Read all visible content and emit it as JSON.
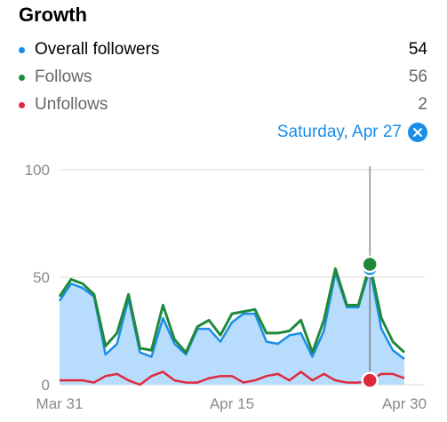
{
  "header": {
    "title": "Growth"
  },
  "legend": [
    {
      "label": "Overall followers",
      "value": "54",
      "color": "#1a8ee8"
    },
    {
      "label": "Follows",
      "value": "56",
      "color": "#1f8a3b"
    },
    {
      "label": "Unfollows",
      "value": "2",
      "color": "#e0283c"
    }
  ],
  "selection": {
    "label": "Saturday, Apr 27"
  },
  "colors": {
    "overall_line": "#1a8ee8",
    "overall_fill": "#b8dcfb",
    "follows_line": "#1f8a3b",
    "unfollows_line": "#e0283c",
    "grid": "#d8d8d8",
    "axis_text": "#8a8a8a",
    "cursor": "#555555"
  },
  "chart_data": {
    "type": "area",
    "x": [
      "Mar 31",
      "Apr 1",
      "Apr 2",
      "Apr 3",
      "Apr 4",
      "Apr 5",
      "Apr 6",
      "Apr 7",
      "Apr 8",
      "Apr 9",
      "Apr 10",
      "Apr 11",
      "Apr 12",
      "Apr 13",
      "Apr 14",
      "Apr 15",
      "Apr 16",
      "Apr 17",
      "Apr 18",
      "Apr 19",
      "Apr 20",
      "Apr 21",
      "Apr 22",
      "Apr 23",
      "Apr 24",
      "Apr 25",
      "Apr 26",
      "Apr 27",
      "Apr 28",
      "Apr 29",
      "Apr 30"
    ],
    "series": [
      {
        "name": "Overall followers",
        "values": [
          39,
          47,
          45,
          41,
          14,
          19,
          40,
          15,
          13,
          31,
          19,
          14,
          26,
          26,
          20,
          29,
          33,
          33,
          20,
          19,
          23,
          24,
          13,
          25,
          52,
          36,
          36,
          54,
          26,
          16,
          12
        ]
      },
      {
        "name": "Follows",
        "values": [
          41,
          49,
          47,
          42,
          18,
          24,
          42,
          17,
          16,
          37,
          21,
          15,
          27,
          30,
          23,
          33,
          34,
          35,
          24,
          24,
          25,
          30,
          15,
          30,
          54,
          37,
          37,
          56,
          31,
          20,
          15
        ]
      },
      {
        "name": "Unfollows",
        "values": [
          2,
          2,
          2,
          1,
          4,
          5,
          2,
          0,
          4,
          6,
          2,
          1,
          1,
          3,
          4,
          4,
          1,
          2,
          4,
          5,
          2,
          6,
          2,
          5,
          2,
          1,
          1,
          2,
          5,
          5,
          3
        ]
      }
    ],
    "x_tick_labels": [
      "Mar 31",
      "Apr 15",
      "Apr 30"
    ],
    "y_tick_labels": [
      "100",
      "50",
      "0"
    ],
    "ylim": [
      0,
      100
    ],
    "highlight_x": "Apr 27",
    "grid": true
  }
}
